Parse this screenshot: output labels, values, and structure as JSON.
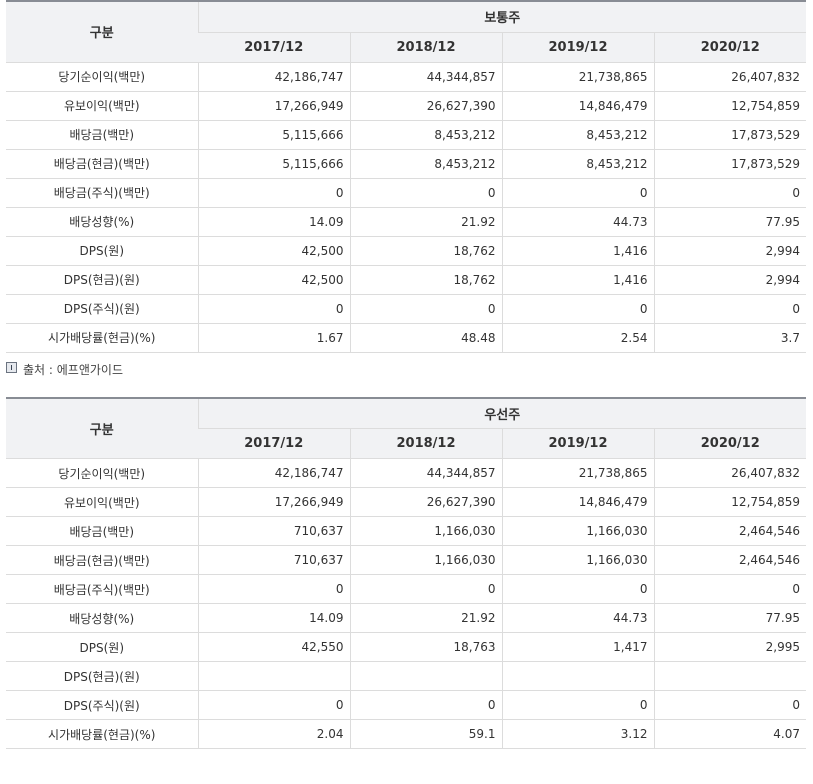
{
  "common": {
    "header_label": "구분",
    "group_title": "보통주",
    "years": [
      "2017/12",
      "2018/12",
      "2019/12",
      "2020/12"
    ],
    "rows": [
      {
        "label": "당기순이익(백만)",
        "values": [
          "42,186,747",
          "44,344,857",
          "21,738,865",
          "26,407,832"
        ]
      },
      {
        "label": "유보이익(백만)",
        "values": [
          "17,266,949",
          "26,627,390",
          "14,846,479",
          "12,754,859"
        ]
      },
      {
        "label": "배당금(백만)",
        "values": [
          "5,115,666",
          "8,453,212",
          "8,453,212",
          "17,873,529"
        ]
      },
      {
        "label": "배당금(현금)(백만)",
        "values": [
          "5,115,666",
          "8,453,212",
          "8,453,212",
          "17,873,529"
        ]
      },
      {
        "label": "배당금(주식)(백만)",
        "values": [
          "0",
          "0",
          "0",
          "0"
        ]
      },
      {
        "label": "배당성향(%)",
        "values": [
          "14.09",
          "21.92",
          "44.73",
          "77.95"
        ]
      },
      {
        "label": "DPS(원)",
        "values": [
          "42,500",
          "18,762",
          "1,416",
          "2,994"
        ]
      },
      {
        "label": "DPS(현금)(원)",
        "values": [
          "42,500",
          "18,762",
          "1,416",
          "2,994"
        ]
      },
      {
        "label": "DPS(주식)(원)",
        "values": [
          "0",
          "0",
          "0",
          "0"
        ]
      },
      {
        "label": "시가배당률(현금)(%)",
        "values": [
          "1.67",
          "48.48",
          "2.54",
          "3.7"
        ]
      }
    ]
  },
  "source": {
    "icon": "info-icon",
    "text": "출처 : 에프앤가이드"
  },
  "preferred": {
    "header_label": "구분",
    "group_title": "우선주",
    "years": [
      "2017/12",
      "2018/12",
      "2019/12",
      "2020/12"
    ],
    "rows": [
      {
        "label": "당기순이익(백만)",
        "values": [
          "42,186,747",
          "44,344,857",
          "21,738,865",
          "26,407,832"
        ]
      },
      {
        "label": "유보이익(백만)",
        "values": [
          "17,266,949",
          "26,627,390",
          "14,846,479",
          "12,754,859"
        ]
      },
      {
        "label": "배당금(백만)",
        "values": [
          "710,637",
          "1,166,030",
          "1,166,030",
          "2,464,546"
        ]
      },
      {
        "label": "배당금(현금)(백만)",
        "values": [
          "710,637",
          "1,166,030",
          "1,166,030",
          "2,464,546"
        ]
      },
      {
        "label": "배당금(주식)(백만)",
        "values": [
          "0",
          "0",
          "0",
          "0"
        ]
      },
      {
        "label": "배당성향(%)",
        "values": [
          "14.09",
          "21.92",
          "44.73",
          "77.95"
        ]
      },
      {
        "label": "DPS(원)",
        "values": [
          "42,550",
          "18,763",
          "1,417",
          "2,995"
        ]
      },
      {
        "label": "DPS(현금)(원)",
        "values": [
          "",
          "",
          "",
          ""
        ]
      },
      {
        "label": "DPS(주식)(원)",
        "values": [
          "0",
          "0",
          "0",
          "0"
        ]
      },
      {
        "label": "시가배당률(현금)(%)",
        "values": [
          "2.04",
          "59.1",
          "3.12",
          "4.07"
        ]
      }
    ]
  }
}
